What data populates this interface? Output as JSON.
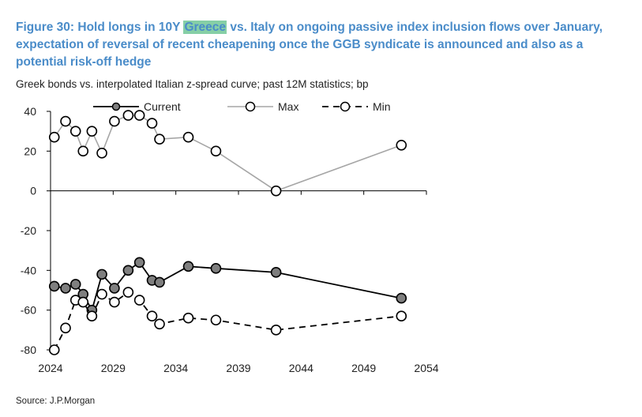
{
  "title": {
    "part1": "Figure 30: Hold longs in 10Y ",
    "highlight": "Greece",
    "part2": " vs. Italy on ongoing passive index inclusion flows over January, expectation of reversal of recent cheapening once the GGB syndicate is announced and also as a potential risk-off hedge"
  },
  "subtitle": "Greek bonds vs. interpolated Italian z-spread curve; past 12M statistics; bp",
  "source": "Source: J.P.Morgan",
  "colors": {
    "title": "#4a8cc9",
    "highlight": "#86cfa6",
    "current_fill": "#7f7f7f",
    "max_line": "#a6a6a6",
    "min_line": "#000000"
  },
  "chart_data": {
    "type": "line",
    "xlim": [
      2024,
      2054
    ],
    "ylim": [
      -80,
      40
    ],
    "xticks": [
      2024,
      2029,
      2034,
      2039,
      2044,
      2049,
      2054
    ],
    "yticks": [
      40,
      20,
      0,
      -20,
      -40,
      -60,
      -80
    ],
    "legend": [
      "Current",
      "Max",
      "Min"
    ],
    "series": [
      {
        "name": "Current",
        "style": "solid-black-filled-markers",
        "x": [
          2024.3,
          2025.2,
          2026.0,
          2026.6,
          2027.3,
          2028.1,
          2029.1,
          2030.2,
          2031.1,
          2032.1,
          2032.7,
          2035.0,
          2037.2,
          2042.0,
          2052.0
        ],
        "y": [
          -48,
          -49,
          -47,
          -52,
          -60,
          -42,
          -49,
          -40,
          -36,
          -45,
          -46,
          -38,
          -39,
          -41,
          -54
        ]
      },
      {
        "name": "Max",
        "style": "solid-grey-open-markers",
        "x": [
          2024.3,
          2025.2,
          2026.0,
          2026.6,
          2027.3,
          2028.1,
          2029.1,
          2030.2,
          2031.1,
          2032.1,
          2032.7,
          2035.0,
          2037.2,
          2042.0,
          2052.0
        ],
        "y": [
          27,
          35,
          30,
          20,
          30,
          19,
          35,
          38,
          38,
          34,
          26,
          27,
          20,
          0,
          23
        ]
      },
      {
        "name": "Min",
        "style": "dashed-black-open-markers",
        "x": [
          2024.3,
          2025.2,
          2026.0,
          2026.6,
          2027.3,
          2028.1,
          2029.1,
          2030.2,
          2031.1,
          2032.1,
          2032.7,
          2035.0,
          2037.2,
          2042.0,
          2052.0
        ],
        "y": [
          -80,
          -69,
          -55,
          -56,
          -63,
          -52,
          -56,
          -51,
          -55,
          -63,
          -67,
          -64,
          -65,
          -70,
          -63
        ]
      }
    ]
  }
}
